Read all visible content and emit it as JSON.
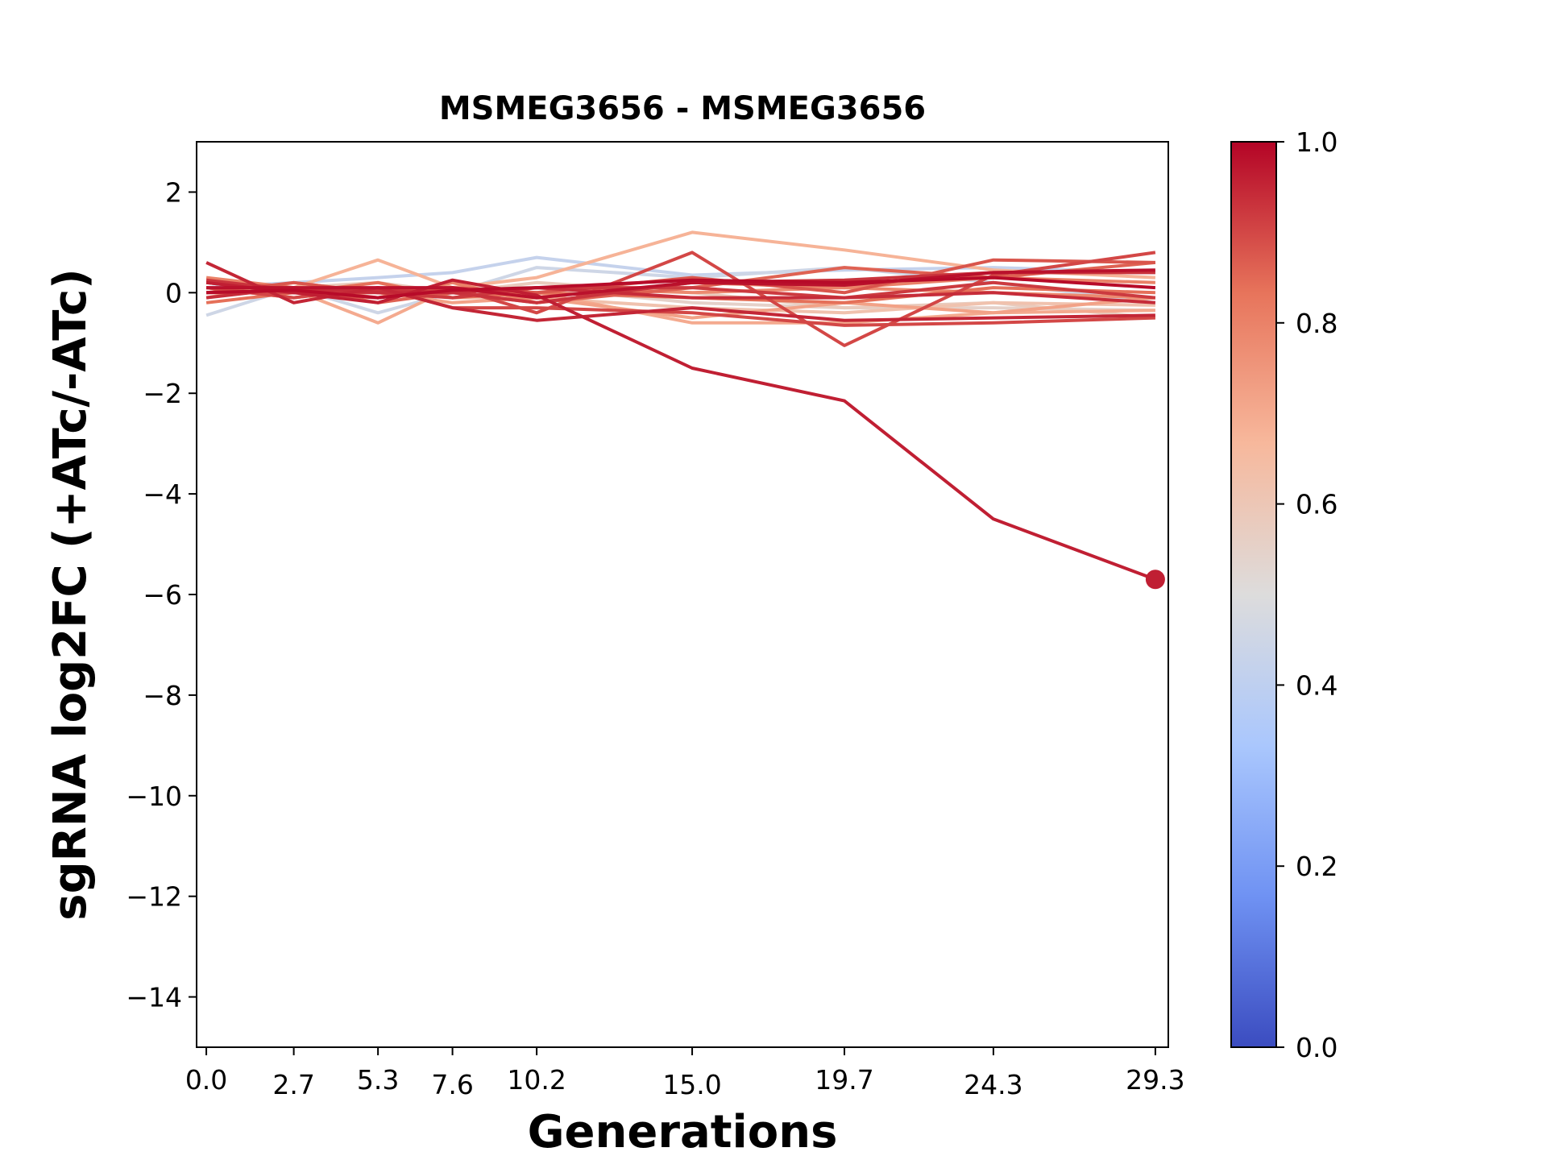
{
  "chart_data": {
    "type": "line",
    "title": "MSMEG3656 - MSMEG3656",
    "xlabel": "Generations",
    "ylabel": "sgRNA log2FC (+ATc/-ATc)",
    "x": [
      0.0,
      2.7,
      5.3,
      7.6,
      10.2,
      15.0,
      19.7,
      24.3,
      29.3
    ],
    "x_tick_labels": [
      "0.0",
      "2.7",
      "5.3",
      "7.6",
      "10.2",
      "15.0",
      "19.7",
      "24.3",
      "29.3"
    ],
    "xlim": [
      -0.3,
      29.7
    ],
    "ylim": [
      -15,
      3
    ],
    "y_ticks": [
      2,
      0,
      -2,
      -4,
      -6,
      -8,
      -10,
      -12,
      -14
    ],
    "y_tick_labels": [
      "2",
      "0",
      "−2",
      "−4",
      "−6",
      "−8",
      "−10",
      "−12",
      "−14"
    ],
    "colorbar": {
      "colormap": "coolwarm",
      "range": [
        0.0,
        1.0
      ],
      "ticks": [
        "0.0",
        "0.2",
        "0.4",
        "0.6",
        "0.8",
        "1.0"
      ],
      "stops": [
        "#3b4cc0",
        "#6f92f3",
        "#aac7fd",
        "#dddcdc",
        "#f7b89c",
        "#e7745b",
        "#b40426"
      ]
    },
    "series": [
      {
        "color_value": 0.42,
        "values": [
          0.1,
          0.2,
          0.3,
          0.4,
          0.7,
          0.35,
          0.45,
          0.5,
          0.4
        ]
      },
      {
        "color_value": 0.45,
        "values": [
          -0.45,
          0.1,
          -0.4,
          0.0,
          0.5,
          0.3,
          0.5,
          0.2,
          -0.2
        ]
      },
      {
        "color_value": 0.55,
        "values": [
          0.2,
          0.0,
          -0.1,
          0.1,
          0.1,
          -0.2,
          -0.3,
          -0.3,
          -0.35
        ]
      },
      {
        "color_value": 0.58,
        "values": [
          0.0,
          0.1,
          0.2,
          0.0,
          0.2,
          0.0,
          -0.3,
          -0.2,
          -0.5
        ]
      },
      {
        "color_value": 0.62,
        "values": [
          0.1,
          0.0,
          0.1,
          -0.1,
          -0.1,
          -0.3,
          -0.4,
          -0.2,
          -0.25
        ]
      },
      {
        "color_value": 0.68,
        "values": [
          0.2,
          0.1,
          0.65,
          0.1,
          0.3,
          1.2,
          0.85,
          0.45,
          0.3
        ]
      },
      {
        "color_value": 0.7,
        "values": [
          0.0,
          0.05,
          -0.6,
          0.1,
          0.0,
          -0.6,
          -0.6,
          -0.4,
          -0.35
        ]
      },
      {
        "color_value": 0.72,
        "values": [
          -0.1,
          0.2,
          0.0,
          -0.2,
          -0.1,
          -0.5,
          -0.2,
          -0.4,
          -0.1
        ]
      },
      {
        "color_value": 0.78,
        "values": [
          0.1,
          -0.1,
          0.1,
          0.0,
          0.1,
          0.0,
          0.1,
          0.0,
          -0.1
        ]
      },
      {
        "color_value": 0.8,
        "values": [
          0.3,
          0.1,
          -0.1,
          0.2,
          -0.2,
          0.2,
          0.1,
          0.3,
          0.2
        ]
      },
      {
        "color_value": 0.84,
        "values": [
          -0.2,
          0.0,
          0.2,
          -0.1,
          0.0,
          -0.1,
          -0.2,
          0.1,
          0.0
        ]
      },
      {
        "color_value": 0.86,
        "values": [
          0.2,
          0.1,
          -0.2,
          0.0,
          -0.2,
          0.1,
          0.5,
          0.3,
          0.6
        ]
      },
      {
        "color_value": 0.88,
        "values": [
          0.0,
          0.2,
          0.0,
          0.1,
          0.0,
          0.3,
          0.0,
          0.65,
          0.6
        ]
      },
      {
        "color_value": 0.9,
        "values": [
          0.1,
          -0.1,
          0.1,
          -0.3,
          -0.3,
          -0.4,
          -0.65,
          -0.6,
          -0.5
        ]
      },
      {
        "color_value": 0.9,
        "values": [
          0.0,
          0.0,
          -0.1,
          0.1,
          -0.4,
          0.8,
          -1.05,
          0.35,
          0.8
        ]
      },
      {
        "color_value": 0.92,
        "values": [
          0.2,
          0.0,
          0.0,
          -0.1,
          0.1,
          0.1,
          -0.1,
          0.2,
          -0.1
        ]
      },
      {
        "color_value": 0.93,
        "values": [
          0.25,
          0.05,
          0.05,
          0.0,
          -0.2,
          0.2,
          0.25,
          0.4,
          0.4
        ]
      },
      {
        "color_value": 0.94,
        "values": [
          -0.1,
          0.1,
          0.0,
          0.0,
          0.1,
          -0.1,
          -0.1,
          0.0,
          -0.2
        ]
      },
      {
        "color_value": 0.95,
        "values": [
          0.6,
          -0.2,
          0.1,
          -0.3,
          -0.55,
          -0.3,
          -0.55,
          -0.5,
          -0.45
        ]
      },
      {
        "color_value": 0.96,
        "values": [
          0.2,
          0.0,
          -0.2,
          0.25,
          -0.05,
          -1.5,
          -2.15,
          -4.5,
          -5.7
        ],
        "end_marker": true
      },
      {
        "color_value": 0.98,
        "values": [
          0.1,
          0.1,
          0.1,
          0.1,
          -0.1,
          0.2,
          0.15,
          0.4,
          0.45
        ]
      },
      {
        "color_value": 0.99,
        "values": [
          0.0,
          0.05,
          -0.1,
          0.05,
          0.1,
          0.25,
          0.2,
          0.3,
          0.1
        ]
      }
    ]
  }
}
